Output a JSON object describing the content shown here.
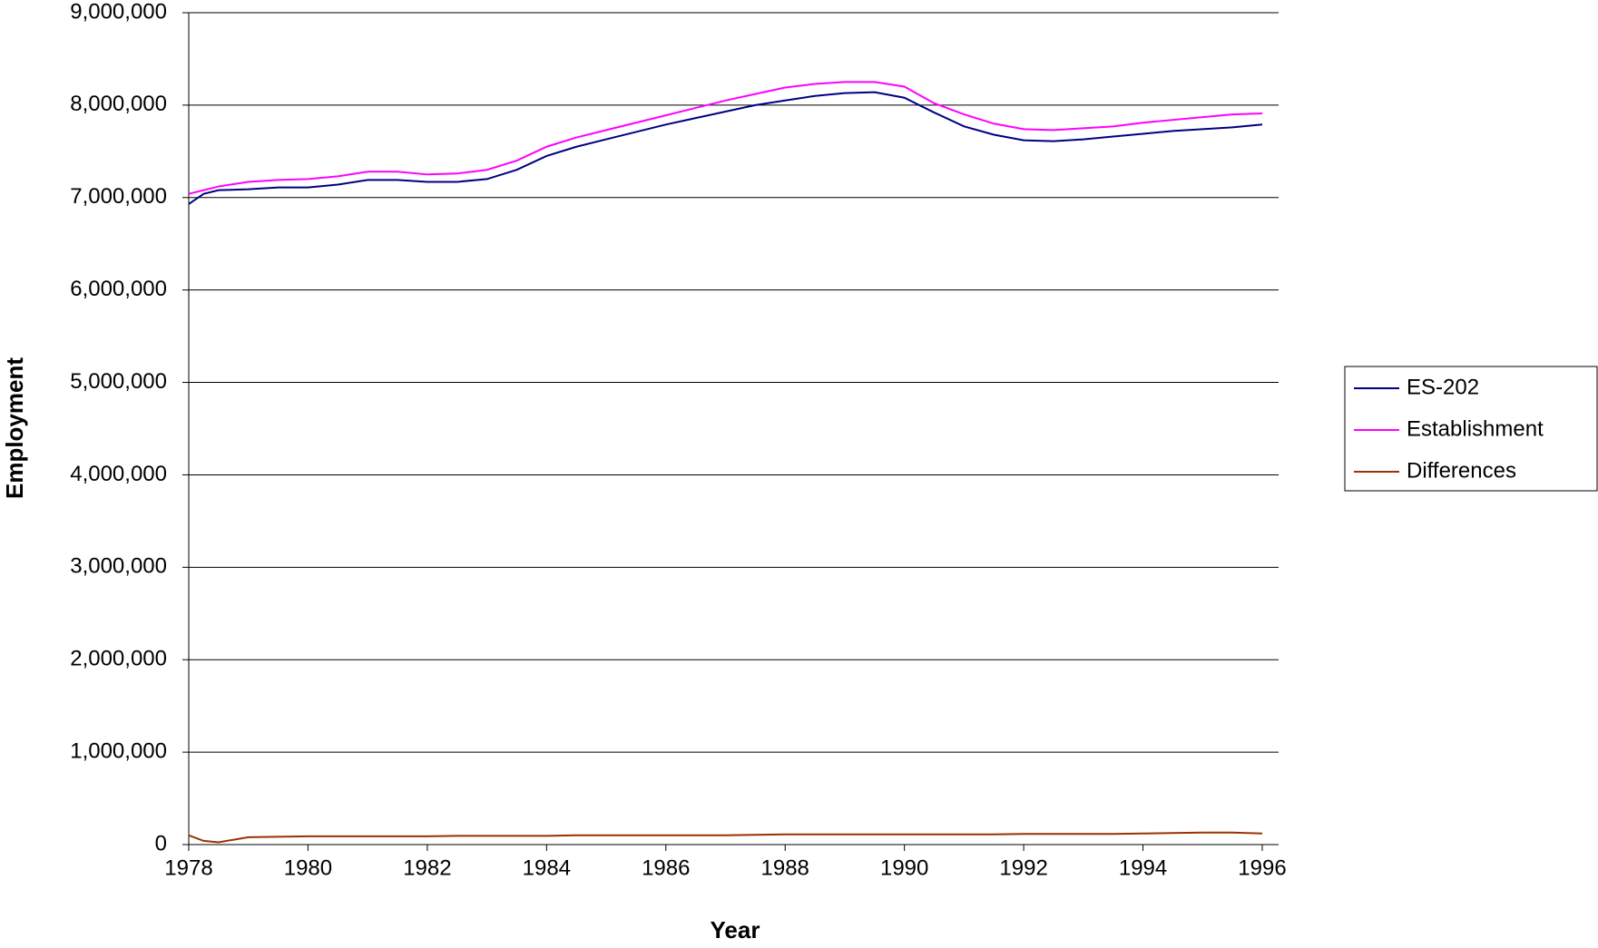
{
  "chart_data": {
    "type": "line",
    "x_label": "Year",
    "y_label": "Employment",
    "x": [
      1978,
      1978.25,
      1978.5,
      1979,
      1979.5,
      1980,
      1980.5,
      1981,
      1981.5,
      1982,
      1982.5,
      1983,
      1983.5,
      1984,
      1984.5,
      1985,
      1985.5,
      1986,
      1986.5,
      1987,
      1987.5,
      1988,
      1988.5,
      1989,
      1989.5,
      1990,
      1990.5,
      1991,
      1991.5,
      1992,
      1992.5,
      1993,
      1993.5,
      1994,
      1994.5,
      1995,
      1995.5,
      1996
    ],
    "series": [
      {
        "name": "ES-202",
        "color": "#000080",
        "values": [
          6930000,
          7040000,
          7080000,
          7090000,
          7110000,
          7110000,
          7140000,
          7190000,
          7190000,
          7170000,
          7170000,
          7200000,
          7300000,
          7450000,
          7550000,
          7630000,
          7710000,
          7790000,
          7860000,
          7930000,
          8000000,
          8050000,
          8100000,
          8130000,
          8140000,
          8080000,
          7920000,
          7770000,
          7680000,
          7620000,
          7610000,
          7630000,
          7660000,
          7690000,
          7720000,
          7740000,
          7760000,
          7790000
        ]
      },
      {
        "name": "Establishment",
        "color": "#ff00ff",
        "values": [
          7040000,
          7080000,
          7120000,
          7170000,
          7190000,
          7200000,
          7230000,
          7280000,
          7280000,
          7250000,
          7260000,
          7300000,
          7400000,
          7550000,
          7650000,
          7730000,
          7810000,
          7890000,
          7970000,
          8050000,
          8120000,
          8190000,
          8230000,
          8250000,
          8250000,
          8200000,
          8020000,
          7900000,
          7800000,
          7740000,
          7730000,
          7750000,
          7770000,
          7810000,
          7840000,
          7870000,
          7900000,
          7910000
        ]
      },
      {
        "name": "Differences",
        "color": "#993300",
        "values": [
          100000,
          40000,
          25000,
          80000,
          85000,
          90000,
          90000,
          90000,
          90000,
          90000,
          95000,
          95000,
          95000,
          95000,
          100000,
          100000,
          100000,
          100000,
          100000,
          100000,
          105000,
          110000,
          110000,
          110000,
          110000,
          110000,
          110000,
          110000,
          110000,
          115000,
          115000,
          115000,
          115000,
          120000,
          125000,
          130000,
          130000,
          120000
        ]
      }
    ],
    "xlim": [
      1978,
      1996
    ],
    "xticks": [
      1978,
      1980,
      1982,
      1984,
      1986,
      1988,
      1990,
      1992,
      1994,
      1996
    ],
    "ylim": [
      0,
      9000000
    ],
    "yticks": [
      0,
      {
        "value": 1000000,
        "label": "1,000,000"
      },
      {
        "value": 2000000,
        "label": "2,000,000"
      },
      {
        "value": 3000000,
        "label": "3,000,000"
      },
      {
        "value": 4000000,
        "label": "4,000,000"
      },
      {
        "value": 5000000,
        "label": "5,000,000"
      },
      {
        "value": 6000000,
        "label": "6,000,000"
      },
      {
        "value": 7000000,
        "label": "7,000,000"
      },
      {
        "value": 8000000,
        "label": "8,000,000"
      },
      {
        "value": 9000000,
        "label": "9,000,000"
      }
    ],
    "grid": true,
    "legend": "right"
  }
}
